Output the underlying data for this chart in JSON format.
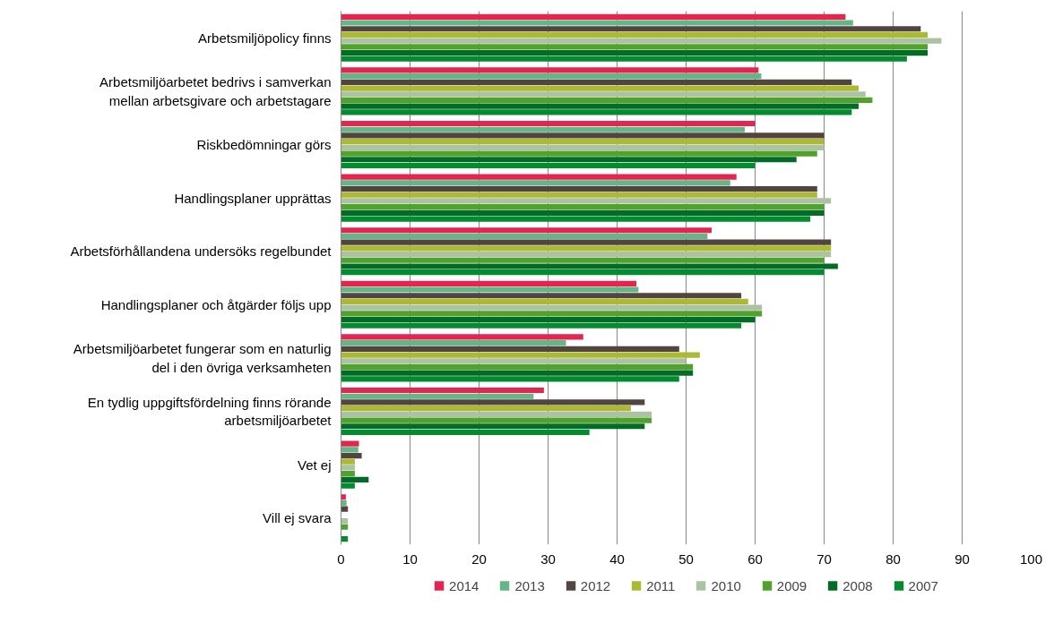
{
  "chart_data": {
    "type": "bar",
    "orientation": "horizontal",
    "categories": [
      "Arbetsmiljöpolicy finns",
      "Arbetsmiljöarbetet bedrivs i samverkan\nmellan arbetsgivare och arbetstagare",
      "Riskbedömningar görs",
      "Handlingsplaner upprättas",
      "Arbetsförhållandena undersöks regelbundet",
      "Handlingsplaner och åtgärder följs upp",
      "Arbetsmiljöarbetet fungerar som en naturlig\ndel i den övriga verksamheten",
      "En tydlig uppgiftsfördelning finns rörande\narbetsmiljöarbetet",
      "Vet ej",
      "Vill ej svara"
    ],
    "series": [
      {
        "name": "2014",
        "color": "#e4254f",
        "values": [
          73.1,
          60.5,
          60,
          57.3,
          53.7,
          42.8,
          35.1,
          29.4,
          2.6,
          0.7
        ]
      },
      {
        "name": "2013",
        "color": "#66b587",
        "values": [
          74.2,
          60.9,
          58.5,
          56.4,
          53.1,
          43.1,
          32.6,
          27.9,
          2.5,
          0.8
        ]
      },
      {
        "name": "2012",
        "color": "#52443e",
        "values": [
          84,
          74,
          70,
          69,
          71,
          58,
          49,
          44,
          3,
          1
        ]
      },
      {
        "name": "2011",
        "color": "#abba32",
        "values": [
          85,
          75,
          70,
          69,
          71,
          59,
          52,
          42,
          2,
          null
        ]
      },
      {
        "name": "2010",
        "color": "#abc3a3",
        "values": [
          87,
          76,
          70,
          71,
          71,
          61,
          50,
          45,
          2,
          1
        ]
      },
      {
        "name": "2009",
        "color": "#51a22d",
        "values": [
          85,
          77,
          69,
          70,
          70,
          61,
          51,
          45,
          2,
          1
        ]
      },
      {
        "name": "2008",
        "color": "#026b26",
        "values": [
          85,
          75,
          66,
          70,
          72,
          60,
          51,
          44,
          4,
          null
        ]
      },
      {
        "name": "2007",
        "color": "#048a2f",
        "values": [
          82,
          74,
          60,
          68,
          70,
          58,
          49,
          36,
          2,
          1
        ]
      }
    ],
    "xlim": [
      0,
      100
    ],
    "xticks": [
      0,
      10,
      20,
      30,
      40,
      50,
      60,
      70,
      80,
      90,
      100
    ],
    "grid": "x",
    "legend": "bottom"
  }
}
